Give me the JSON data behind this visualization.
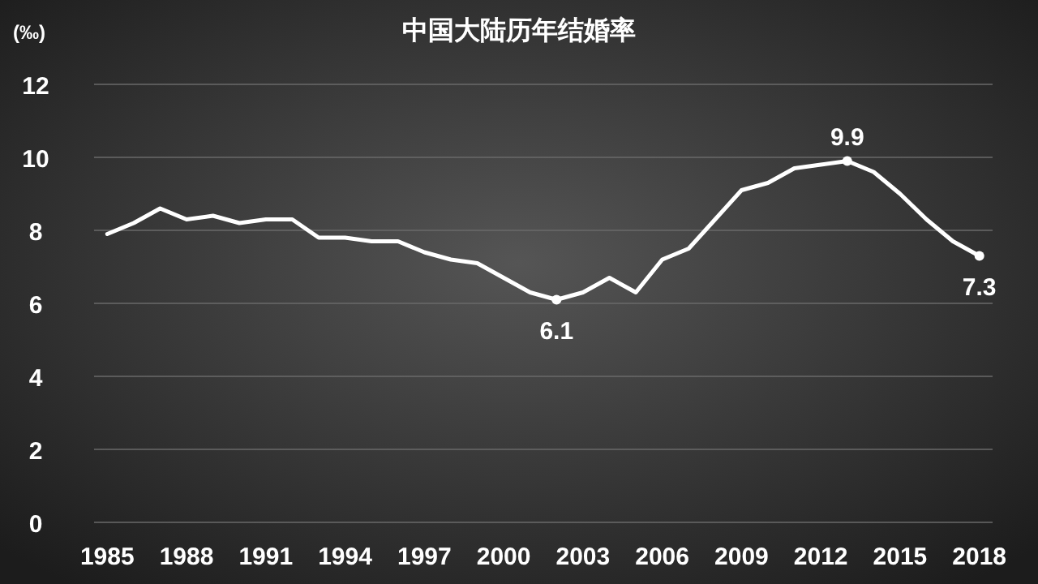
{
  "chart_data": {
    "type": "line",
    "title": "中国大陆历年结婚率",
    "ylabel": "(‰)",
    "categories": [
      "1985",
      null,
      null,
      "1988",
      null,
      null,
      "1991",
      null,
      null,
      "1994",
      null,
      null,
      "1997",
      null,
      null,
      "2000",
      null,
      null,
      "2003",
      null,
      null,
      "2006",
      null,
      null,
      "2009",
      null,
      null,
      "2012",
      null,
      null,
      "2015",
      null,
      null,
      "2018"
    ],
    "series": [
      {
        "color": "#ffffff",
        "values": [
          7.9,
          8.2,
          8.6,
          8.3,
          8.4,
          8.2,
          8.3,
          8.3,
          7.8,
          7.8,
          7.7,
          7.7,
          7.4,
          7.2,
          7.1,
          6.7,
          6.3,
          6.1,
          6.3,
          6.7,
          6.3,
          7.2,
          7.5,
          8.3,
          9.1,
          9.3,
          9.7,
          9.8,
          9.9,
          9.6,
          9.0,
          8.3,
          7.7,
          7.3
        ],
        "value_labels": [
          null,
          null,
          null,
          null,
          null,
          null,
          null,
          null,
          null,
          null,
          null,
          null,
          null,
          null,
          null,
          null,
          null,
          "6.1",
          null,
          null,
          null,
          null,
          null,
          null,
          null,
          null,
          null,
          null,
          "9.9",
          null,
          null,
          null,
          null,
          "7.3"
        ]
      }
    ],
    "ylim": [
      0,
      12
    ],
    "yticks": [
      0,
      2,
      4,
      6,
      8,
      10,
      12
    ],
    "grid": "y",
    "marker": "none",
    "line_style": "solid"
  }
}
